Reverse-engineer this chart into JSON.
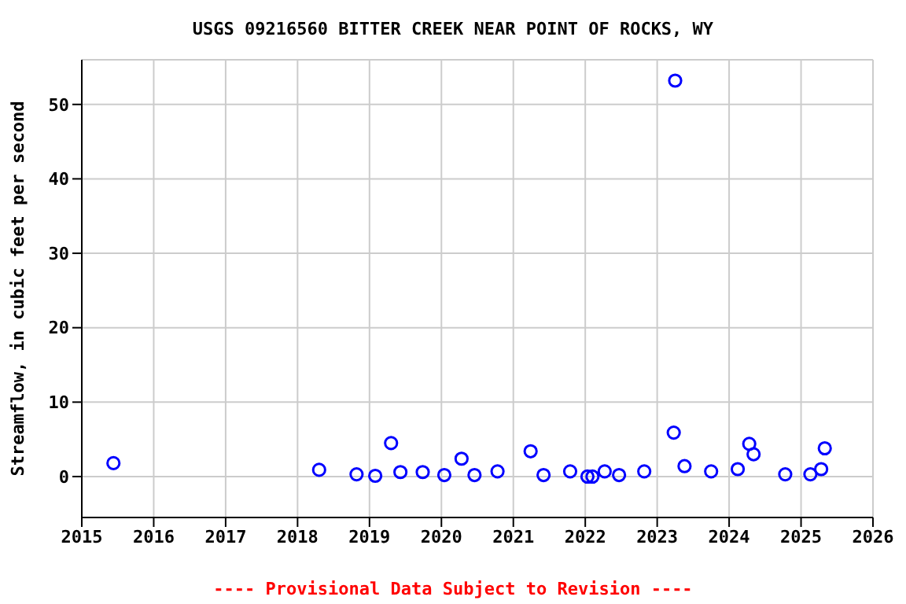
{
  "chart_data": {
    "type": "scatter",
    "title": "USGS 09216560 BITTER CREEK NEAR POINT OF ROCKS, WY",
    "ylabel": "Streamflow, in cubic feet per second",
    "annotations": [
      "---- Provisional Data Subject to Revision ----"
    ],
    "x": [
      2015.44,
      2018.3,
      2018.82,
      2019.08,
      2019.3,
      2019.43,
      2019.74,
      2020.04,
      2020.28,
      2020.46,
      2020.78,
      2021.24,
      2021.42,
      2021.79,
      2022.03,
      2022.1,
      2022.27,
      2022.47,
      2022.82,
      2023.23,
      2023.25,
      2023.38,
      2023.75,
      2024.12,
      2024.28,
      2024.34,
      2024.78,
      2025.13,
      2025.28,
      2025.33
    ],
    "series": [
      {
        "color": "#0000ff",
        "values": [
          1.8,
          0.9,
          0.3,
          0.1,
          4.5,
          0.6,
          0.6,
          0.2,
          2.4,
          0.2,
          0.7,
          3.4,
          0.2,
          0.7,
          0,
          0,
          0.7,
          0.2,
          0.7,
          5.9,
          53.2,
          1.4,
          0.7,
          1.0,
          4.4,
          3.0,
          0.3,
          0.3,
          1.0,
          3.8
        ]
      }
    ],
    "xlim": [
      2015,
      2026
    ],
    "xticks": [
      2015,
      2016,
      2017,
      2018,
      2019,
      2020,
      2021,
      2022,
      2023,
      2024,
      2025,
      2026
    ],
    "ylim": [
      -5.5,
      56
    ],
    "yticks": [
      0,
      10,
      20,
      30,
      40,
      50
    ],
    "grid": true,
    "marker": "circle"
  }
}
